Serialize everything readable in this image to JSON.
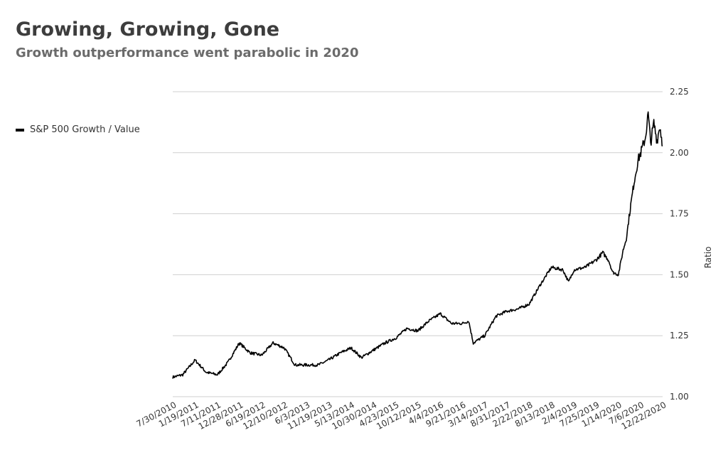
{
  "chart_data": {
    "type": "line",
    "title": "Growing, Growing, Gone",
    "subtitle": "Growth outperformance went parabolic in 2020",
    "ylabel": "Ratio",
    "xlabel": "",
    "ylim": [
      1.0,
      2.25
    ],
    "y_ticks": [
      "1.00",
      "1.25",
      "1.50",
      "1.75",
      "2.00",
      "2.25"
    ],
    "y_axis_side": "right",
    "grid": "horizontal",
    "legend_position": "left",
    "x_tick_labels": [
      "7/30/2010",
      "1/19/2011",
      "7/11/2011",
      "12/28/2011",
      "6/19/2012",
      "12/10/2012",
      "6/3/2013",
      "11/19/2013",
      "5/13/2014",
      "10/30/2014",
      "4/23/2015",
      "10/12/2015",
      "4/4/2016",
      "9/21/2016",
      "3/14/2017",
      "8/31/2017",
      "2/22/2018",
      "8/13/2018",
      "2/4/2019",
      "7/25/2019",
      "1/14/2020",
      "7/6/2020",
      "12/22/2020"
    ],
    "series": [
      {
        "name": "S&P 500 Growth / Value",
        "color": "#000000",
        "x": [
          "2010-07-30",
          "2010-10-15",
          "2011-01-19",
          "2011-04-15",
          "2011-07-11",
          "2011-09-30",
          "2011-12-28",
          "2012-03-20",
          "2012-06-19",
          "2012-09-15",
          "2012-12-10",
          "2013-03-05",
          "2013-06-03",
          "2013-09-01",
          "2013-11-19",
          "2014-02-20",
          "2014-05-13",
          "2014-08-01",
          "2014-10-30",
          "2015-01-30",
          "2015-04-23",
          "2015-07-20",
          "2015-10-12",
          "2016-01-05",
          "2016-04-04",
          "2016-06-30",
          "2016-09-21",
          "2016-11-10",
          "2016-12-15",
          "2017-03-14",
          "2017-06-10",
          "2017-08-31",
          "2017-11-30",
          "2018-02-22",
          "2018-05-20",
          "2018-08-13",
          "2018-11-10",
          "2018-12-24",
          "2019-02-04",
          "2019-05-01",
          "2019-07-25",
          "2019-09-15",
          "2019-10-30",
          "2019-12-01",
          "2020-01-14",
          "2020-02-20",
          "2020-03-16",
          "2020-04-15",
          "2020-05-15",
          "2020-06-15",
          "2020-07-06",
          "2020-08-10",
          "2020-09-01",
          "2020-09-20",
          "2020-10-15",
          "2020-11-09",
          "2020-12-01",
          "2020-12-22"
        ],
        "values": [
          1.08,
          1.09,
          1.15,
          1.1,
          1.09,
          1.14,
          1.22,
          1.18,
          1.17,
          1.22,
          1.2,
          1.13,
          1.13,
          1.13,
          1.15,
          1.18,
          1.2,
          1.16,
          1.19,
          1.22,
          1.24,
          1.28,
          1.27,
          1.31,
          1.34,
          1.3,
          1.3,
          1.31,
          1.22,
          1.25,
          1.33,
          1.35,
          1.36,
          1.38,
          1.46,
          1.53,
          1.52,
          1.47,
          1.52,
          1.53,
          1.56,
          1.59,
          1.56,
          1.51,
          1.5,
          1.6,
          1.65,
          1.77,
          1.88,
          1.97,
          2.0,
          2.06,
          2.16,
          2.04,
          2.12,
          2.05,
          2.11,
          2.03
        ]
      }
    ]
  }
}
